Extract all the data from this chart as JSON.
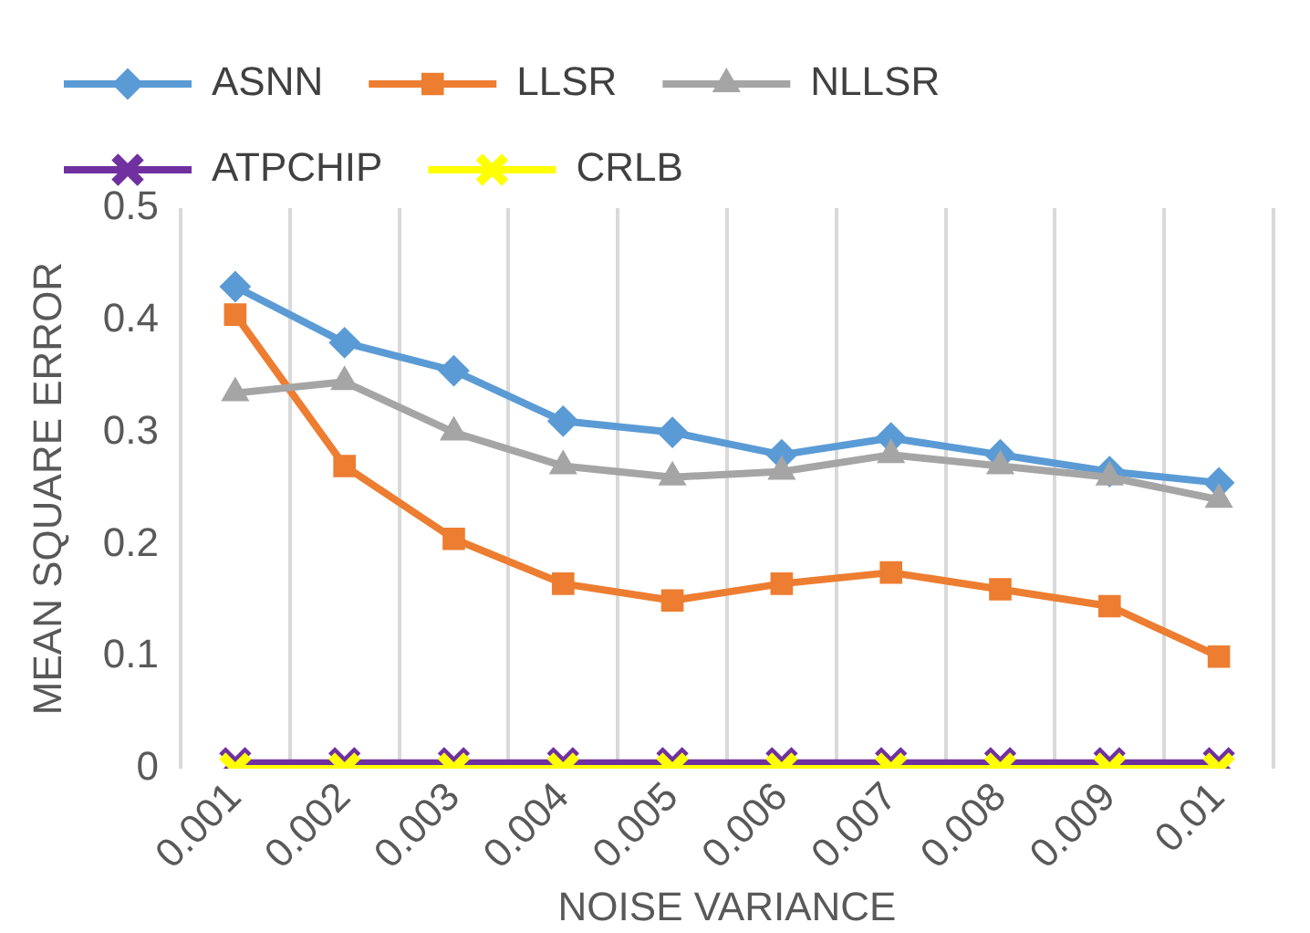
{
  "chart_data": {
    "type": "line",
    "xlabel": "NOISE VARIANCE",
    "ylabel": "MEAN SQUARE ERROR",
    "categories": [
      "0.001",
      "0.002",
      "0.003",
      "0.004",
      "0.005",
      "0.006",
      "0.007",
      "0.008",
      "0.009",
      "0.01"
    ],
    "series": [
      {
        "name": "ASNN",
        "color": "#5b9bd5",
        "marker": "diamond",
        "values": [
          0.43,
          0.38,
          0.355,
          0.31,
          0.3,
          0.28,
          0.295,
          0.28,
          0.265,
          0.255
        ]
      },
      {
        "name": "LLSR",
        "color": "#ed7d31",
        "marker": "square",
        "values": [
          0.405,
          0.27,
          0.205,
          0.165,
          0.15,
          0.165,
          0.175,
          0.16,
          0.145,
          0.1
        ]
      },
      {
        "name": "NLLSR",
        "color": "#a5a5a5",
        "marker": "triangle",
        "values": [
          0.335,
          0.345,
          0.3,
          0.27,
          0.26,
          0.265,
          0.28,
          0.27,
          0.26,
          0.24
        ]
      },
      {
        "name": "ATPCHIP",
        "color": "#7030a0",
        "marker": "cross",
        "values": [
          0.005,
          0.005,
          0.005,
          0.005,
          0.005,
          0.005,
          0.005,
          0.005,
          0.005,
          0.005
        ]
      },
      {
        "name": "CRLB",
        "color": "#ffff00",
        "marker": "cross",
        "values": [
          0,
          0,
          0,
          0,
          0,
          0,
          0,
          0,
          0,
          0
        ]
      }
    ],
    "ylim": [
      0,
      0.5
    ],
    "yticks": [
      0,
      0.1,
      0.2,
      0.3,
      0.4,
      0.5
    ],
    "grid": "x",
    "legend": "top"
  }
}
